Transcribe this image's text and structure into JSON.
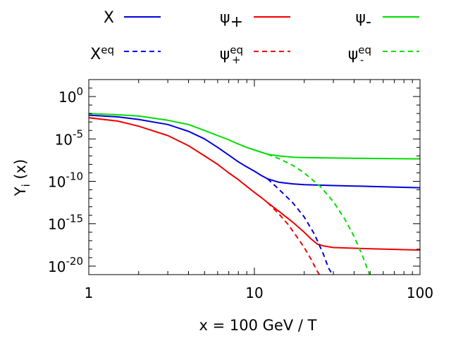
{
  "chart_data": {
    "type": "line",
    "xlabel": "x = 100 GeV / T",
    "ylabel": "Y",
    "ylabel_sub": "i",
    "ylabel_arg": " (x)",
    "xscale": "log",
    "yscale": "log",
    "xlim": [
      1,
      100
    ],
    "ylim_exp": [
      -21,
      2
    ],
    "grid": false,
    "legend": "top, outside, two rows",
    "x_ticks": [
      {
        "value": 1,
        "label": "1"
      },
      {
        "value": 10,
        "label": "10"
      },
      {
        "value": 100,
        "label": "100"
      }
    ],
    "y_ticks": [
      {
        "exp": 0,
        "base": "10",
        "sup": "0"
      },
      {
        "exp": -5,
        "base": "10",
        "sup": "-5"
      },
      {
        "exp": -10,
        "base": "10",
        "sup": "-10"
      },
      {
        "exp": -15,
        "base": "10",
        "sup": "-15"
      },
      {
        "exp": -20,
        "base": "10",
        "sup": "-20"
      }
    ],
    "series": [
      {
        "name": "X",
        "sub": "",
        "sup": "",
        "color": "#0000dd",
        "dash": false,
        "x": [
          1,
          1.5,
          2,
          3,
          4,
          5,
          6,
          7,
          8,
          9,
          10,
          11,
          12,
          14,
          17,
          20,
          30,
          50,
          100
        ],
        "log10y": [
          -2.2,
          -2.4,
          -2.7,
          -3.3,
          -4.1,
          -5.0,
          -6.0,
          -6.9,
          -7.7,
          -8.3,
          -8.8,
          -9.3,
          -9.7,
          -10.1,
          -10.3,
          -10.4,
          -10.5,
          -10.6,
          -10.75
        ]
      },
      {
        "name": "ψ",
        "sub": "+",
        "sup": "",
        "color": "#ee0000",
        "dash": false,
        "x": [
          1,
          1.5,
          2,
          3,
          4,
          5,
          6,
          7,
          8,
          9,
          10,
          11,
          12,
          14,
          17,
          20,
          22,
          24,
          26,
          30,
          50,
          100
        ],
        "log10y": [
          -2.5,
          -2.9,
          -3.5,
          -4.6,
          -5.8,
          -7.0,
          -8.0,
          -9.0,
          -9.8,
          -10.6,
          -11.3,
          -11.9,
          -12.5,
          -13.5,
          -14.8,
          -16.0,
          -16.8,
          -17.4,
          -17.6,
          -17.8,
          -17.95,
          -18.1
        ]
      },
      {
        "name": "ψ",
        "sub": "-",
        "sup": "",
        "color": "#00dd00",
        "dash": false,
        "x": [
          1,
          1.5,
          2,
          3,
          4,
          5,
          6,
          7,
          8,
          9,
          10,
          12,
          14,
          17,
          20,
          30,
          50,
          100
        ],
        "log10y": [
          -2.0,
          -2.15,
          -2.3,
          -2.8,
          -3.3,
          -4.0,
          -4.6,
          -5.1,
          -5.6,
          -6.0,
          -6.3,
          -6.8,
          -7.0,
          -7.15,
          -7.2,
          -7.25,
          -7.3,
          -7.35
        ]
      },
      {
        "name": "X",
        "sub": "",
        "sup": "eq",
        "color": "#0000dd",
        "dash": true,
        "x": [
          12,
          14,
          17,
          20,
          23,
          26,
          28,
          30
        ],
        "log10y": [
          -9.7,
          -10.9,
          -12.5,
          -14.2,
          -16.2,
          -18.5,
          -20.2,
          -21.2
        ]
      },
      {
        "name": "ψ",
        "sub": "+",
        "sup": "eq",
        "color": "#ee0000",
        "dash": true,
        "x": [
          12,
          14,
          16,
          18,
          20,
          22,
          24,
          25
        ],
        "log10y": [
          -12.5,
          -13.8,
          -15.1,
          -16.5,
          -17.8,
          -19.2,
          -20.6,
          -21.2
        ]
      },
      {
        "name": "ψ",
        "sub": "-",
        "sup": "eq",
        "color": "#00dd00",
        "dash": true,
        "x": [
          12,
          14,
          17,
          20,
          25,
          30,
          35,
          40,
          45,
          50
        ],
        "log10y": [
          -6.8,
          -7.3,
          -8.1,
          -9.0,
          -10.6,
          -12.4,
          -14.4,
          -16.5,
          -18.8,
          -21.2
        ]
      }
    ]
  }
}
